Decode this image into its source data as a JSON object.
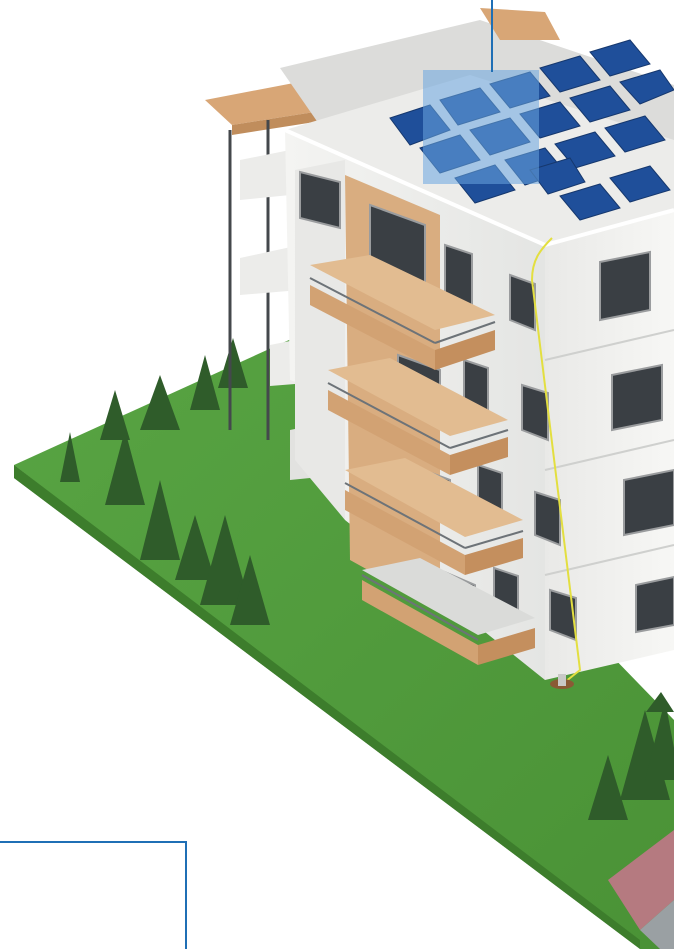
{
  "illustration": {
    "subject": "apartment-building-with-rooftop-solar-panels",
    "colors": {
      "lawn": "#4f9a3a",
      "lawn_edge": "#3d7d2c",
      "wall": "#f0f0ee",
      "wall_shade": "#d9dad8",
      "wood": "#d9ad80",
      "panel": "#1f4f9a",
      "highlight": "#5b9bd6",
      "callout": "#1f6fb5",
      "tree": "#2f5c2a",
      "cable": "#e3df40"
    }
  }
}
